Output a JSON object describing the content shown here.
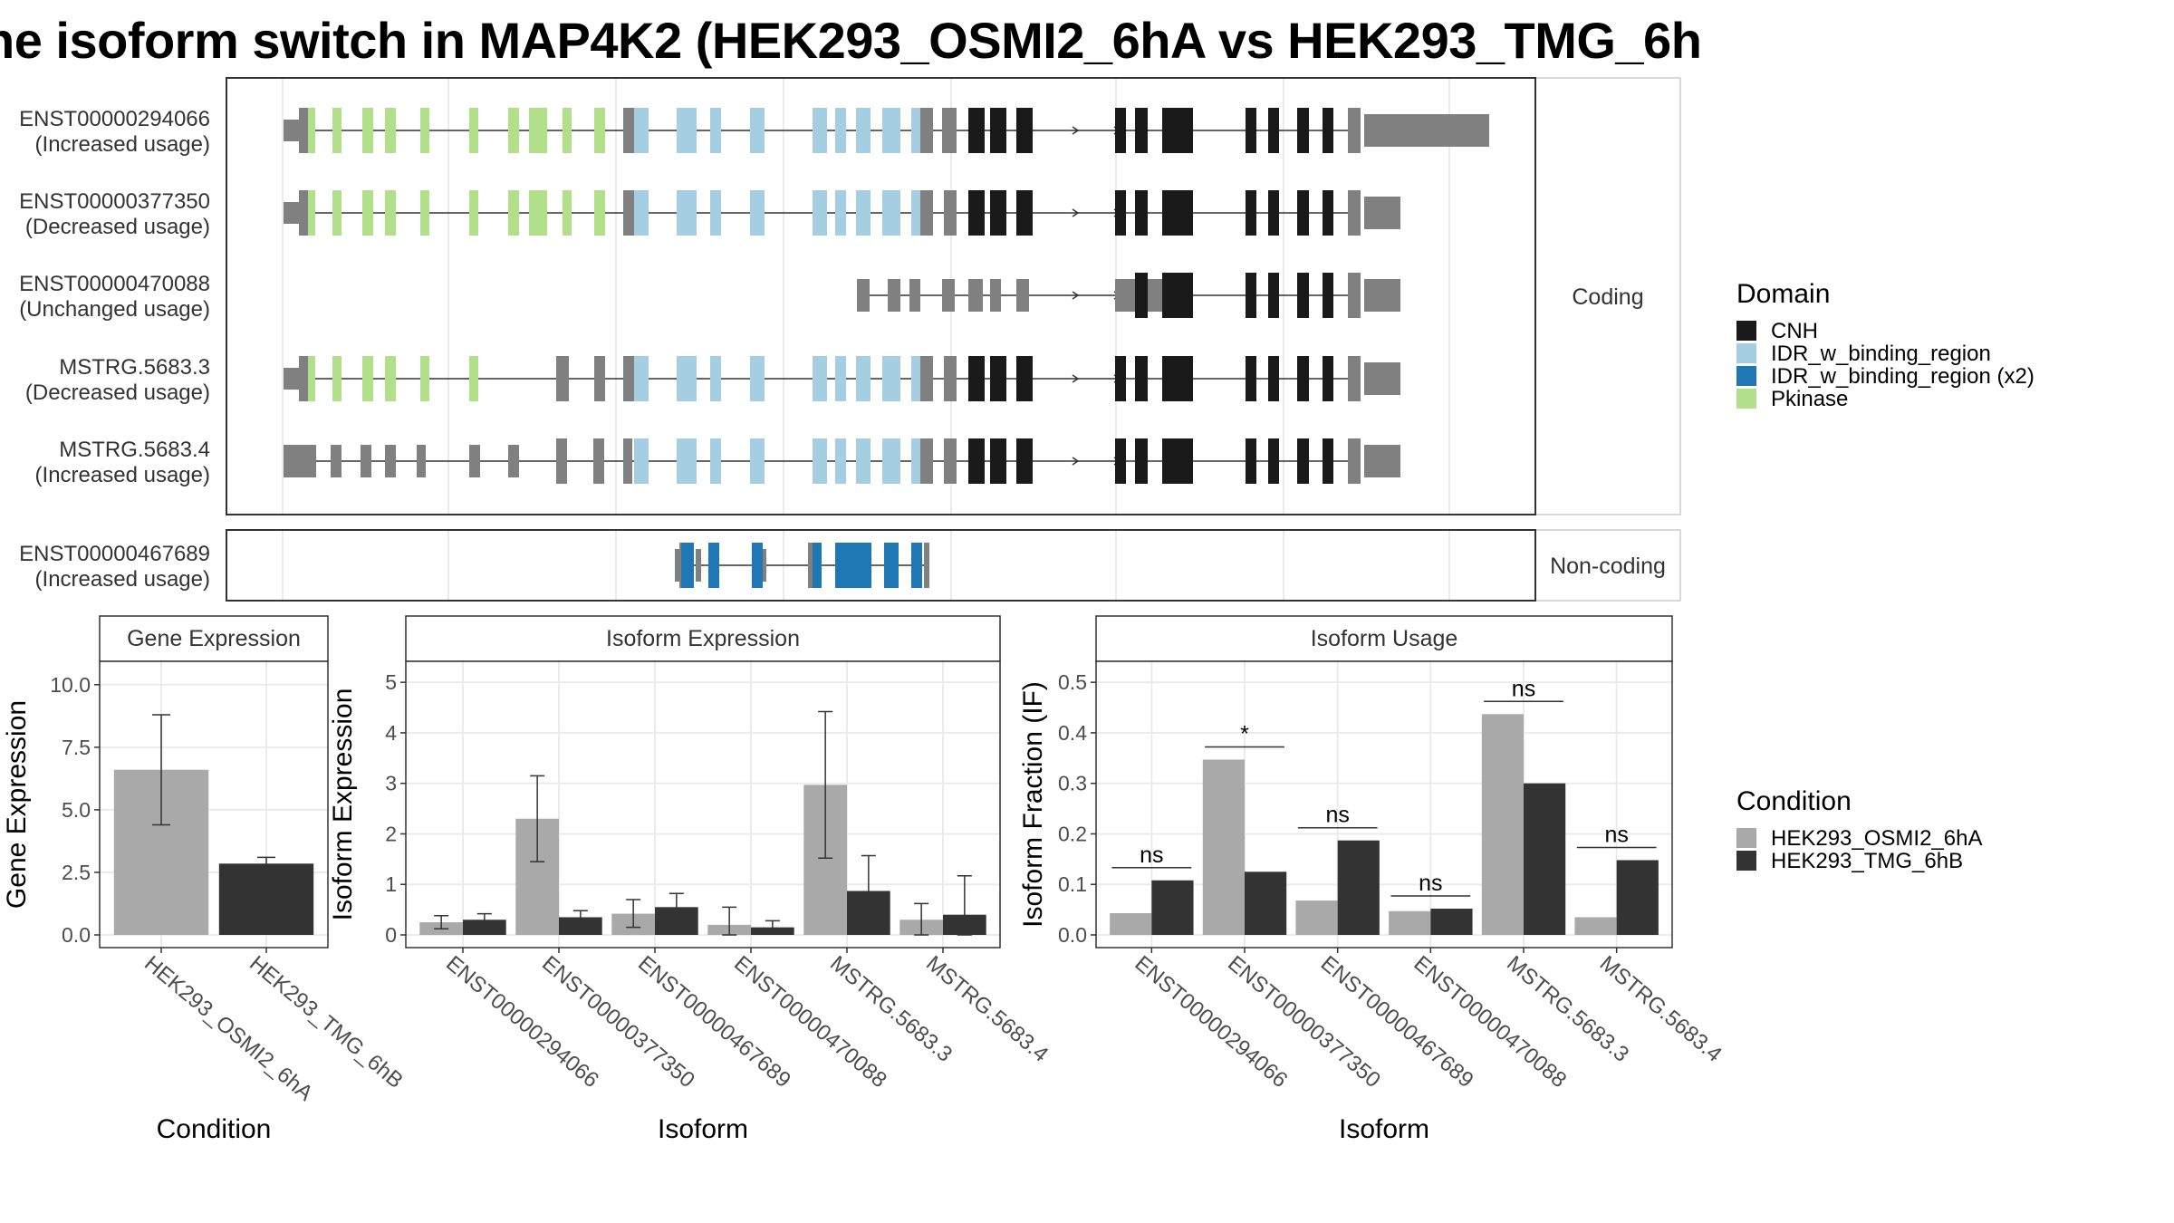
{
  "title": "ne isoform switch in MAP4K2 (HEK293_OSMI2_6hA vs HEK293_TMG_6h",
  "colors": {
    "CNH": "#1a1a1a",
    "IDR_w_binding_region": "#a6cee3",
    "IDR_w_binding_region (x2)": "#1f78b4",
    "Pkinase": "#b2df8a",
    "no_domain": "#808080",
    "condition_a": "#a9a9a9",
    "condition_b": "#333333"
  },
  "structure": {
    "facets": [
      "Coding",
      "Non-coding"
    ],
    "transcripts": [
      {
        "id": "ENST00000294066",
        "usage": "(Increased usage)",
        "group": "Coding"
      },
      {
        "id": "ENST00000377350",
        "usage": "(Decreased usage)",
        "group": "Coding"
      },
      {
        "id": "ENST00000470088",
        "usage": "(Unchanged usage)",
        "group": "Coding"
      },
      {
        "id": "MSTRG.5683.3",
        "usage": "(Decreased usage)",
        "group": "Coding"
      },
      {
        "id": "MSTRG.5683.4",
        "usage": "(Increased usage)",
        "group": "Coding"
      },
      {
        "id": "ENST00000467689",
        "usage": "(Increased usage)",
        "group": "Non-coding"
      }
    ],
    "legend": {
      "title": "Domain",
      "items": [
        "CNH",
        "IDR_w_binding_region",
        "IDR_w_binding_region (x2)",
        "Pkinase"
      ]
    }
  },
  "chart_data": [
    {
      "type": "bar",
      "title": "Gene Expression",
      "xlabel": "Condition",
      "ylabel": "Gene Expression",
      "categories": [
        "HEK293_OSMI2_6hA",
        "HEK293_TMG_6hB"
      ],
      "values": [
        6.6,
        2.85
      ],
      "error_low": [
        4.4,
        2.6
      ],
      "error_high": [
        8.8,
        3.1
      ],
      "ylim": [
        0,
        10.5
      ],
      "yticks": [
        "0.0",
        "2.5",
        "5.0",
        "7.5",
        "10.0"
      ],
      "grid": true
    },
    {
      "type": "bar",
      "title": "Isoform Expression",
      "xlabel": "Isoform",
      "ylabel": "Isoform Expression",
      "categories": [
        "ENST00000294066",
        "ENST00000377350",
        "ENST00000467689",
        "ENST00000470088",
        "MSTRG.5683.3",
        "MSTRG.5683.4"
      ],
      "series": [
        {
          "name": "HEK293_OSMI2_6hA",
          "values": [
            0.25,
            2.3,
            0.42,
            0.2,
            2.97,
            0.3
          ],
          "error_low": [
            0.12,
            1.45,
            0.15,
            0.0,
            1.52,
            0.0
          ],
          "error_high": [
            0.38,
            3.15,
            0.7,
            0.55,
            4.42,
            0.62
          ]
        },
        {
          "name": "HEK293_TMG_6hB",
          "values": [
            0.3,
            0.35,
            0.55,
            0.15,
            0.87,
            0.4
          ],
          "error_low": [
            0.18,
            0.22,
            0.28,
            0.02,
            0.18,
            0.0
          ],
          "error_high": [
            0.42,
            0.48,
            0.82,
            0.28,
            1.57,
            1.17
          ]
        }
      ],
      "ylim": [
        0,
        5.2
      ],
      "yticks": [
        "0",
        "1",
        "2",
        "3",
        "4",
        "5"
      ],
      "grid": true
    },
    {
      "type": "bar",
      "title": "Isoform Usage",
      "xlabel": "Isoform",
      "ylabel": "Isoform Fraction (IF)",
      "categories": [
        "ENST00000294066",
        "ENST00000377350",
        "ENST00000467689",
        "ENST00000470088",
        "MSTRG.5683.3",
        "MSTRG.5683.4"
      ],
      "series": [
        {
          "name": "HEK293_OSMI2_6hA",
          "values": [
            0.043,
            0.347,
            0.068,
            0.047,
            0.437,
            0.035
          ]
        },
        {
          "name": "HEK293_TMG_6hB",
          "values": [
            0.108,
            0.125,
            0.187,
            0.052,
            0.3,
            0.148
          ]
        }
      ],
      "significance": [
        "ns",
        "*",
        "ns",
        "ns",
        "ns",
        "ns"
      ],
      "ylim": [
        0,
        0.52
      ],
      "yticks": [
        "0.0",
        "0.1",
        "0.2",
        "0.3",
        "0.4",
        "0.5"
      ],
      "grid": true
    }
  ],
  "condition_legend": {
    "title": "Condition",
    "items": [
      "HEK293_OSMI2_6hA",
      "HEK293_TMG_6hB"
    ]
  }
}
